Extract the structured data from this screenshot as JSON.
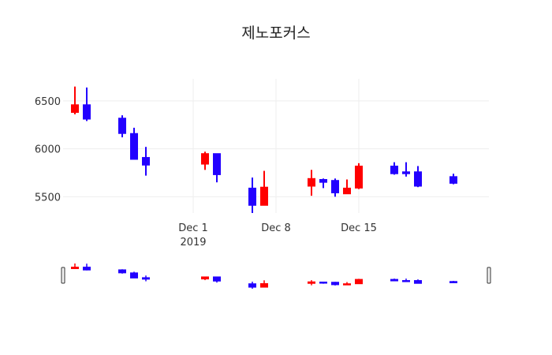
{
  "chart_data": {
    "type": "candlestick",
    "title": "제노포커스",
    "xlabel": "",
    "ylabel": "",
    "ylim": [
      5330,
      6730
    ],
    "xlim": [
      "2019-11-20",
      "2019-12-26"
    ],
    "y_ticks": [
      5500,
      6000,
      6500
    ],
    "x_ticks": [
      {
        "date": "2019-12-01",
        "label": "Dec 1",
        "sublabel": "2019"
      },
      {
        "date": "2019-12-08",
        "label": "Dec 8",
        "sublabel": ""
      },
      {
        "date": "2019-12-15",
        "label": "Dec 15",
        "sublabel": ""
      }
    ],
    "grid": true,
    "range_slider": true,
    "colors": {
      "increasing": "#ff0000",
      "decreasing": "#2200ff",
      "grid": "#eeeeee"
    },
    "candles": [
      {
        "date": "2019-11-21",
        "open": 6380,
        "high": 6650,
        "low": 6360,
        "close": 6460
      },
      {
        "date": "2019-11-22",
        "open": 6460,
        "high": 6640,
        "low": 6290,
        "close": 6310
      },
      {
        "date": "2019-11-25",
        "open": 6320,
        "high": 6350,
        "low": 6120,
        "close": 6160
      },
      {
        "date": "2019-11-26",
        "open": 6160,
        "high": 6220,
        "low": 5890,
        "close": 5890
      },
      {
        "date": "2019-11-27",
        "open": 5910,
        "high": 6020,
        "low": 5720,
        "close": 5830
      },
      {
        "date": "2019-12-02",
        "open": 5840,
        "high": 5970,
        "low": 5780,
        "close": 5950
      },
      {
        "date": "2019-12-03",
        "open": 5950,
        "high": 5950,
        "low": 5650,
        "close": 5730
      },
      {
        "date": "2019-12-06",
        "open": 5590,
        "high": 5700,
        "low": 5330,
        "close": 5410
      },
      {
        "date": "2019-12-07",
        "open": 5410,
        "high": 5770,
        "low": 5410,
        "close": 5600
      },
      {
        "date": "2019-12-11",
        "open": 5610,
        "high": 5780,
        "low": 5510,
        "close": 5690
      },
      {
        "date": "2019-12-12",
        "open": 5680,
        "high": 5690,
        "low": 5590,
        "close": 5650
      },
      {
        "date": "2019-12-13",
        "open": 5670,
        "high": 5690,
        "low": 5500,
        "close": 5540
      },
      {
        "date": "2019-12-14",
        "open": 5530,
        "high": 5680,
        "low": 5530,
        "close": 5590
      },
      {
        "date": "2019-12-15",
        "open": 5590,
        "high": 5850,
        "low": 5580,
        "close": 5820
      },
      {
        "date": "2019-12-18",
        "open": 5820,
        "high": 5860,
        "low": 5730,
        "close": 5740
      },
      {
        "date": "2019-12-19",
        "open": 5760,
        "high": 5860,
        "low": 5710,
        "close": 5740
      },
      {
        "date": "2019-12-20",
        "open": 5760,
        "high": 5820,
        "low": 5600,
        "close": 5610
      },
      {
        "date": "2019-12-23",
        "open": 5710,
        "high": 5740,
        "low": 5630,
        "close": 5640
      }
    ]
  }
}
